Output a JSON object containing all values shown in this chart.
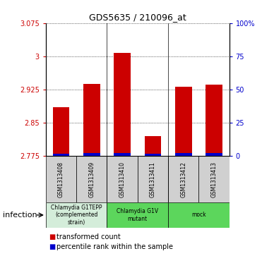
{
  "title": "GDS5635 / 210096_at",
  "samples": [
    "GSM1313408",
    "GSM1313409",
    "GSM1313410",
    "GSM1313411",
    "GSM1313412",
    "GSM1313413"
  ],
  "transformed_counts": [
    2.885,
    2.937,
    3.008,
    2.82,
    2.932,
    2.936
  ],
  "percentile_ranks": [
    2.0,
    2.5,
    2.5,
    2.0,
    2.5,
    2.5
  ],
  "ylim_left": [
    2.775,
    3.075
  ],
  "ylim_right": [
    0,
    100
  ],
  "yticks_left": [
    2.775,
    2.85,
    2.925,
    3.0,
    3.075
  ],
  "yticks_right": [
    0,
    25,
    50,
    75,
    100
  ],
  "ytick_labels_left": [
    "2.775",
    "2.85",
    "2.925",
    "3",
    "3.075"
  ],
  "ytick_labels_right": [
    "0",
    "25",
    "50",
    "75",
    "100%"
  ],
  "bar_color": "#cc0000",
  "percentile_color": "#0000cc",
  "bg_color": "#ffffff",
  "factor_label": "infection",
  "legend_red": "transformed count",
  "legend_blue": "percentile rank within the sample",
  "baseline": 2.775,
  "groups": [
    {
      "label": "Chlamydia G1TEPP\n(complemented\nstrain)",
      "start": 0,
      "end": 1,
      "color": "#d4edda"
    },
    {
      "label": "Chlamydia G1V\nmutant",
      "start": 2,
      "end": 3,
      "color": "#5cd65c"
    },
    {
      "label": "mock",
      "start": 4,
      "end": 5,
      "color": "#5cd65c"
    }
  ],
  "sample_box_color": "#d0d0d0"
}
